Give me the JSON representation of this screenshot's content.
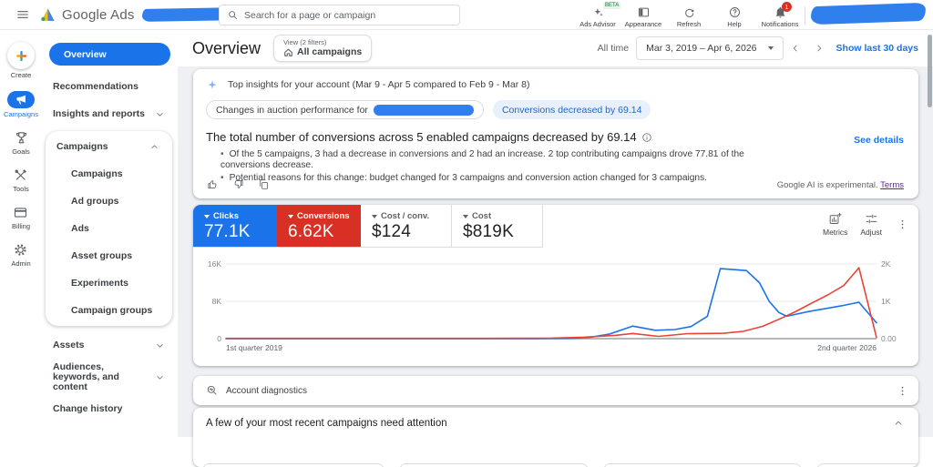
{
  "topbar": {
    "brand": "Google Ads",
    "search_placeholder": "Search for a page or campaign",
    "actions": {
      "ads_advisor": {
        "label": "Ads Advisor",
        "badge": "BETA"
      },
      "appearance": {
        "label": "Appearance"
      },
      "refresh": {
        "label": "Refresh"
      },
      "help": {
        "label": "Help"
      },
      "notifications": {
        "label": "Notifications",
        "badge": "1"
      }
    }
  },
  "rail": {
    "create": "Create",
    "campaigns": "Campaigns",
    "goals": "Goals",
    "tools": "Tools",
    "billing": "Billing",
    "admin": "Admin"
  },
  "nav": {
    "overview": "Overview",
    "recommendations": "Recommendations",
    "insights_reports": "Insights and reports",
    "campaigns_group": {
      "header": "Campaigns",
      "items": [
        "Campaigns",
        "Ad groups",
        "Ads",
        "Asset groups",
        "Experiments",
        "Campaign groups"
      ]
    },
    "assets": "Assets",
    "audiences": "Audiences, keywords, and content",
    "change_history": "Change history"
  },
  "header": {
    "title": "Overview",
    "view_chip": {
      "top": "View (2 filters)",
      "label": "All campaigns"
    },
    "range_label": "All time",
    "date_range": "Mar 3, 2019 – Apr 6, 2026",
    "show_last": "Show last 30 days"
  },
  "insights": {
    "title": "Top insights for your account (Mar 9 - Apr 5 compared to Feb 9 - Mar 8)",
    "chip_auction": "Changes in auction performance for",
    "chip_conversions": "Conversions decreased by 69.14",
    "headline": "The total number of conversions across 5 enabled campaigns decreased by 69.14",
    "bullets": [
      "Of the 5 campaigns, 3 had a decrease in conversions and 2 had an increase. 2 top contributing campaigns drove 77.81 of the conversions decrease.",
      "Potential reasons for this change: budget changed for 3 campaigns and conversion action changed for 3 campaigns."
    ],
    "see_details": "See details",
    "disclaimer": "Google AI is experimental.",
    "terms": "Terms"
  },
  "metrics": {
    "cards": [
      {
        "label": "Clicks",
        "value": "77.1K",
        "color": "#1a73e8",
        "selected": true
      },
      {
        "label": "Conversions",
        "value": "6.62K",
        "color": "#d93025",
        "selected": true
      },
      {
        "label": "Cost / conv.",
        "value": "$124",
        "color": "#ffffff",
        "selected": false
      },
      {
        "label": "Cost",
        "value": "$819K",
        "color": "#ffffff",
        "selected": false
      }
    ],
    "metrics_label": "Metrics",
    "adjust_label": "Adjust"
  },
  "chart_data": {
    "type": "line",
    "x_axis": {
      "left_label": "1st quarter 2019",
      "right_label": "2nd quarter 2026"
    },
    "y_axis_left": {
      "label": "Clicks",
      "ticks": [
        "0",
        "8K",
        "16K"
      ],
      "max": 16000
    },
    "y_axis_right": {
      "label": "Conversions",
      "ticks": [
        "0.00",
        "1K",
        "2K"
      ],
      "max": 2000
    },
    "grid": true,
    "legend": "none",
    "series": [
      {
        "name": "Clicks",
        "axis": "left",
        "color": "#1a73e8",
        "points": [
          [
            0,
            20
          ],
          [
            0.1,
            20
          ],
          [
            0.2,
            20
          ],
          [
            0.3,
            20
          ],
          [
            0.4,
            20
          ],
          [
            0.48,
            20
          ],
          [
            0.53,
            60
          ],
          [
            0.56,
            300
          ],
          [
            0.59,
            1000
          ],
          [
            0.625,
            2700
          ],
          [
            0.66,
            1800
          ],
          [
            0.69,
            1950
          ],
          [
            0.715,
            2600
          ],
          [
            0.74,
            4800
          ],
          [
            0.76,
            15000
          ],
          [
            0.8,
            14600
          ],
          [
            0.82,
            12000
          ],
          [
            0.835,
            8000
          ],
          [
            0.85,
            5600
          ],
          [
            0.862,
            4800
          ],
          [
            0.895,
            5800
          ],
          [
            0.92,
            6400
          ],
          [
            0.945,
            7000
          ],
          [
            0.973,
            7800
          ],
          [
            1,
            3400
          ]
        ]
      },
      {
        "name": "Conversions",
        "axis": "right",
        "color": "#ea4335",
        "points": [
          [
            0,
            8
          ],
          [
            0.1,
            8
          ],
          [
            0.2,
            8
          ],
          [
            0.3,
            8
          ],
          [
            0.4,
            8
          ],
          [
            0.5,
            15
          ],
          [
            0.55,
            40
          ],
          [
            0.6,
            90
          ],
          [
            0.625,
            140
          ],
          [
            0.665,
            60
          ],
          [
            0.71,
            135
          ],
          [
            0.74,
            140
          ],
          [
            0.765,
            145
          ],
          [
            0.795,
            195
          ],
          [
            0.825,
            330
          ],
          [
            0.85,
            520
          ],
          [
            0.875,
            720
          ],
          [
            0.9,
            950
          ],
          [
            0.925,
            1170
          ],
          [
            0.95,
            1430
          ],
          [
            0.973,
            1900
          ],
          [
            1,
            30
          ]
        ]
      }
    ]
  },
  "diagnostics": {
    "title": "Account diagnostics"
  },
  "attention": {
    "title": "A few of your most recent campaigns need attention"
  },
  "theme": {
    "accent_blue": "#1a73e8",
    "metric_red": "#d93025",
    "chip_bg": "#e8f0fe",
    "chip_text": "#1967d2",
    "terms_link": "#681da8",
    "redaction_blue": "#2f80ed"
  }
}
